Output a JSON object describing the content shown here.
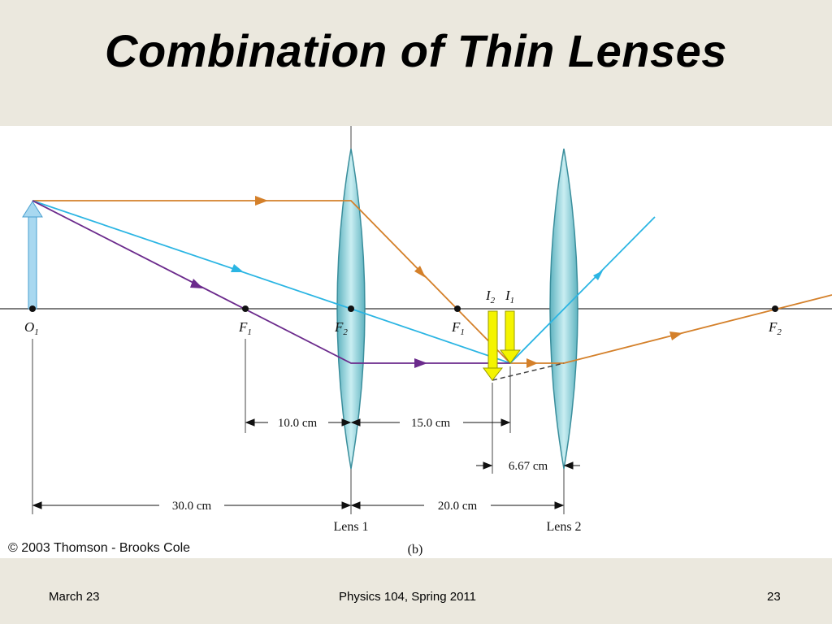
{
  "slide": {
    "title": "Combination of Thin Lenses"
  },
  "figure": {
    "copyright": "© 2003 Thomson - Brooks Cole",
    "panel_label": "(b)",
    "lens1_label": "Lens 1",
    "lens2_label": "Lens 2",
    "points": {
      "o1": "O",
      "o1_sub": "1",
      "f1_left": "F",
      "f1_left_sub": "1",
      "f2_left": "F",
      "f2_left_sub": "2",
      "f1_right": "F",
      "f1_right_sub": "1",
      "f2_right": "F",
      "f2_right_sub": "2",
      "i2": "I",
      "i2_sub": "2",
      "i1": "I",
      "i1_sub": "1"
    },
    "dimensions": {
      "d_10": "10.0 cm",
      "d_15": "15.0 cm",
      "d_667": "6.67 cm",
      "d_30": "30.0 cm",
      "d_20": "20.0 cm"
    },
    "colors": {
      "ray_orange": "#d4802a",
      "ray_blue": "#2bb5e3",
      "ray_purple": "#6b2a8c",
      "lens_fill": "#9fd4dc",
      "object_arrow": "#a8d8f0",
      "image_arrow": "#f4f400"
    }
  },
  "footer": {
    "date": "March 23",
    "course": "Physics 104, Spring 2011",
    "page": "23"
  }
}
